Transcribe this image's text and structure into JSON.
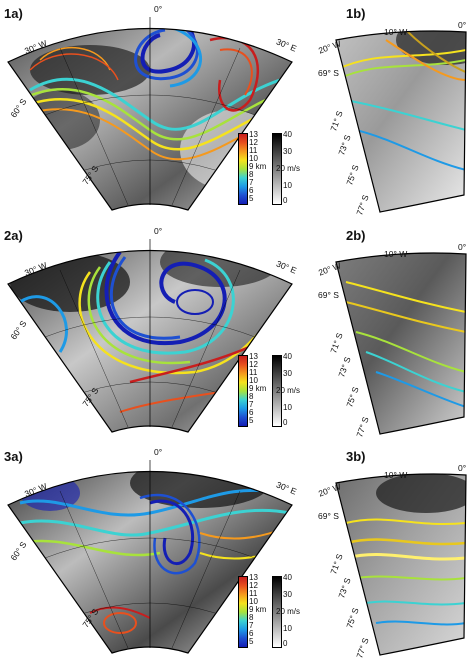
{
  "panels": [
    {
      "id": "1a",
      "label": "1a)"
    },
    {
      "id": "1b",
      "label": "1b)"
    },
    {
      "id": "2a",
      "label": "2a)"
    },
    {
      "id": "2b",
      "label": "2b)"
    },
    {
      "id": "3a",
      "label": "3a)"
    },
    {
      "id": "3b",
      "label": "3b)"
    }
  ],
  "ticks_a": {
    "top": "0°",
    "w": "30° W",
    "e": "30° E",
    "s60": "60° S",
    "s75": "75° S"
  },
  "ticks_b": {
    "w20": "20° W",
    "w10": "10° W",
    "zero": "0°",
    "s69": "69° S",
    "s71": "71° S",
    "s73": "73° S",
    "s75": "75° S",
    "s77": "77° S"
  },
  "colorbar_height": {
    "labels": [
      "13",
      "12",
      "11",
      "10",
      "9 km",
      "8",
      "7",
      "6",
      "5"
    ],
    "colors": [
      "#c81e1e",
      "#e8501e",
      "#f59a1e",
      "#f5e21e",
      "#a8e23c",
      "#3cd2d2",
      "#1e9ae6",
      "#1e50d2",
      "#141eb4"
    ]
  },
  "colorbar_wind": {
    "labels": [
      "40",
      "30",
      "20 m/s",
      "10",
      "0"
    ]
  }
}
